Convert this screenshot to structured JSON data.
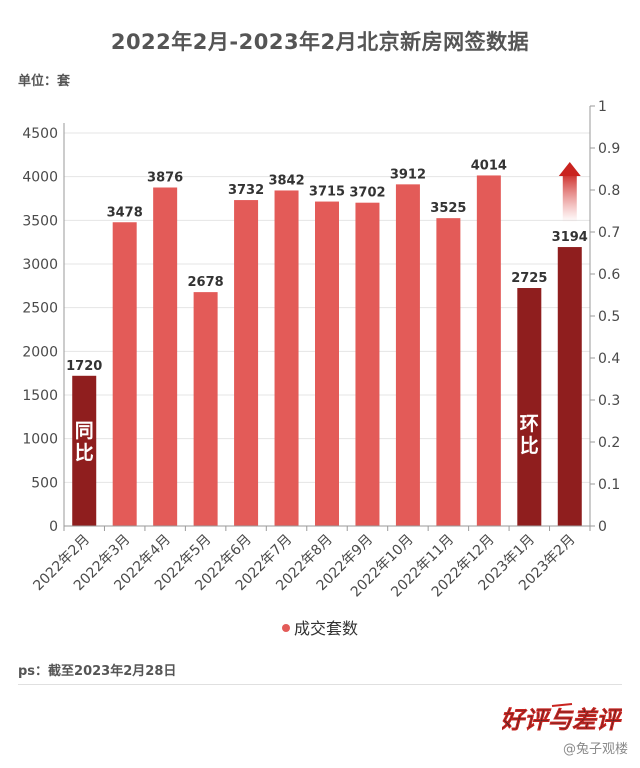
{
  "chart_data": {
    "type": "bar",
    "title": "2022年2月-2023年2月北京新房网签数据",
    "unit_label": "单位：套",
    "categories": [
      "2022年2月",
      "2022年3月",
      "2022年4月",
      "2022年5月",
      "2022年6月",
      "2022年7月",
      "2022年8月",
      "2022年9月",
      "2022年10月",
      "2022年11月",
      "2022年12月",
      "2023年1月",
      "2023年2月"
    ],
    "series": [
      {
        "name": "成交套数",
        "values": [
          1720,
          3478,
          3876,
          2678,
          3732,
          3842,
          3715,
          3702,
          3912,
          3525,
          4014,
          2725,
          3194
        ]
      }
    ],
    "highlighted": [
      "2022年2月",
      "2023年1月",
      "2023年2月"
    ],
    "ylim": [
      0,
      4500
    ],
    "yticks": [
      0,
      500,
      1000,
      1500,
      2000,
      2500,
      3000,
      3500,
      4000,
      4500
    ],
    "y2lim": [
      0,
      1
    ],
    "y2ticks": [
      "0",
      "0.1",
      "0.2",
      "0.3",
      "0.4",
      "0.5",
      "0.6",
      "0.7",
      "0.8",
      "0.9",
      "1"
    ],
    "annotations": {
      "yoy": "同比",
      "mom": "环比"
    },
    "grid": true,
    "legend_position": "bottom",
    "colors": {
      "bar": "#e35b58",
      "highlight": "#8f1e1e",
      "axis": "#9a9a9a",
      "grid": "#e4e4e4"
    }
  },
  "footer": {
    "ps": "ps：截至2023年2月28日",
    "logo_text": "好评与差评",
    "watermark": "@兔子观楼"
  }
}
